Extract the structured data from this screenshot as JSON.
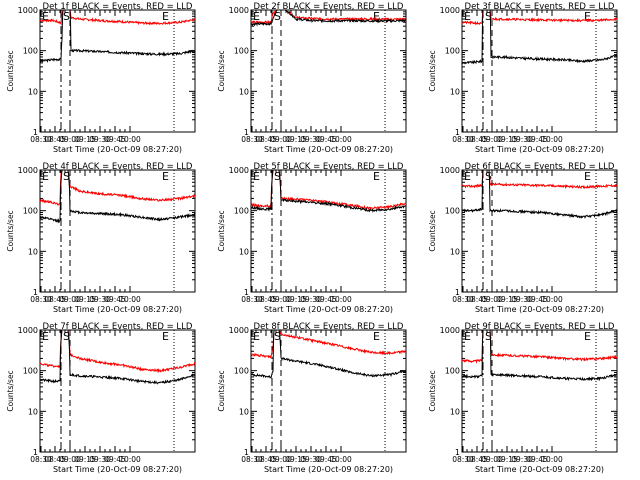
{
  "chart_data": {
    "type": "line",
    "grid": false,
    "legend": "none",
    "ylabel": "Counts/sec",
    "xlabel": "Start Time (20-Oct-09 08:27:20)",
    "ylim": [
      1,
      1000
    ],
    "y_scale": "log",
    "ytick_labels": [
      "1",
      "10",
      "100",
      "1000"
    ],
    "xtick_labels": [
      "08:30",
      "08:45",
      "09:00",
      "09:15",
      "09:30",
      "09:45",
      "10:00"
    ],
    "markers": {
      "E": "E",
      "S": "S"
    },
    "colors": {
      "events": "#000000",
      "lld": "#ff0000",
      "axes": "#000000"
    },
    "panels": [
      {
        "title": "Det 1f BLACK = Events, RED = LLD",
        "events": [
          [
            0,
            55
          ],
          [
            12,
            60
          ],
          [
            21,
            62
          ],
          [
            22,
            200
          ],
          [
            23,
            1000
          ],
          [
            30,
            1000
          ],
          [
            31,
            100
          ],
          [
            40,
            100
          ],
          [
            60,
            95
          ],
          [
            80,
            90
          ],
          [
            100,
            85
          ],
          [
            120,
            82
          ],
          [
            140,
            85
          ],
          [
            155,
            100
          ]
        ],
        "lld": [
          [
            0,
            550
          ],
          [
            12,
            560
          ],
          [
            21,
            480
          ],
          [
            22,
            800
          ],
          [
            23,
            1000
          ],
          [
            30,
            1000
          ],
          [
            31,
            650
          ],
          [
            40,
            600
          ],
          [
            60,
            550
          ],
          [
            80,
            520
          ],
          [
            100,
            480
          ],
          [
            120,
            470
          ],
          [
            140,
            500
          ],
          [
            155,
            580
          ]
        ]
      },
      {
        "title": "Det 2f BLACK = Events, RED = LLD",
        "events": [
          [
            0,
            450
          ],
          [
            20,
            460
          ],
          [
            22,
            600
          ],
          [
            26,
            1000
          ],
          [
            34,
            1000
          ],
          [
            45,
            600
          ],
          [
            60,
            550
          ],
          [
            80,
            540
          ],
          [
            100,
            545
          ],
          [
            120,
            540
          ],
          [
            140,
            540
          ],
          [
            155,
            550
          ]
        ],
        "lld": [
          [
            0,
            500
          ],
          [
            20,
            500
          ],
          [
            22,
            800
          ],
          [
            26,
            1000
          ],
          [
            34,
            1000
          ],
          [
            45,
            650
          ],
          [
            60,
            620
          ],
          [
            80,
            600
          ],
          [
            100,
            600
          ],
          [
            120,
            600
          ],
          [
            140,
            590
          ],
          [
            155,
            600
          ]
        ]
      },
      {
        "title": "Det 3f BLACK = Events, RED = LLD",
        "events": [
          [
            0,
            50
          ],
          [
            12,
            52
          ],
          [
            20,
            55
          ],
          [
            21,
            1000
          ],
          [
            28,
            1000
          ],
          [
            29,
            70
          ],
          [
            40,
            70
          ],
          [
            60,
            65
          ],
          [
            80,
            62
          ],
          [
            100,
            60
          ],
          [
            120,
            55
          ],
          [
            140,
            60
          ],
          [
            155,
            75
          ]
        ],
        "lld": [
          [
            0,
            500
          ],
          [
            12,
            480
          ],
          [
            20,
            460
          ],
          [
            21,
            1000
          ],
          [
            28,
            1000
          ],
          [
            29,
            600
          ],
          [
            40,
            600
          ],
          [
            60,
            580
          ],
          [
            80,
            570
          ],
          [
            100,
            560
          ],
          [
            120,
            550
          ],
          [
            140,
            560
          ],
          [
            155,
            600
          ]
        ]
      },
      {
        "title": "Det 4f BLACK = Events, RED = LLD",
        "events": [
          [
            0,
            70
          ],
          [
            12,
            60
          ],
          [
            20,
            55
          ],
          [
            21,
            500
          ],
          [
            22,
            1000
          ],
          [
            28,
            1000
          ],
          [
            30,
            100
          ],
          [
            40,
            90
          ],
          [
            60,
            85
          ],
          [
            80,
            80
          ],
          [
            100,
            70
          ],
          [
            120,
            60
          ],
          [
            140,
            70
          ],
          [
            155,
            80
          ]
        ],
        "lld": [
          [
            0,
            180
          ],
          [
            12,
            160
          ],
          [
            20,
            140
          ],
          [
            21,
            800
          ],
          [
            22,
            1000
          ],
          [
            28,
            1000
          ],
          [
            30,
            400
          ],
          [
            40,
            300
          ],
          [
            60,
            260
          ],
          [
            80,
            240
          ],
          [
            100,
            200
          ],
          [
            120,
            180
          ],
          [
            140,
            200
          ],
          [
            155,
            230
          ]
        ]
      },
      {
        "title": "Det 5f BLACK = Events, RED = LLD",
        "events": [
          [
            0,
            120
          ],
          [
            12,
            110
          ],
          [
            20,
            110
          ],
          [
            22,
            1000
          ],
          [
            28,
            1000
          ],
          [
            30,
            180
          ],
          [
            40,
            175
          ],
          [
            60,
            160
          ],
          [
            80,
            145
          ],
          [
            100,
            120
          ],
          [
            120,
            100
          ],
          [
            140,
            110
          ],
          [
            155,
            130
          ]
        ],
        "lld": [
          [
            0,
            140
          ],
          [
            12,
            130
          ],
          [
            20,
            130
          ],
          [
            22,
            1000
          ],
          [
            28,
            1000
          ],
          [
            30,
            200
          ],
          [
            40,
            195
          ],
          [
            60,
            180
          ],
          [
            80,
            160
          ],
          [
            100,
            135
          ],
          [
            120,
            115
          ],
          [
            140,
            125
          ],
          [
            155,
            150
          ]
        ]
      },
      {
        "title": "Det 6f BLACK = Events, RED = LLD",
        "events": [
          [
            0,
            100
          ],
          [
            12,
            100
          ],
          [
            20,
            110
          ],
          [
            21,
            1000
          ],
          [
            27,
            1000
          ],
          [
            28,
            100
          ],
          [
            40,
            100
          ],
          [
            60,
            95
          ],
          [
            80,
            90
          ],
          [
            100,
            80
          ],
          [
            120,
            70
          ],
          [
            140,
            80
          ],
          [
            155,
            100
          ]
        ],
        "lld": [
          [
            0,
            400
          ],
          [
            12,
            400
          ],
          [
            20,
            420
          ],
          [
            21,
            1000
          ],
          [
            27,
            1000
          ],
          [
            28,
            450
          ],
          [
            40,
            440
          ],
          [
            60,
            430
          ],
          [
            80,
            420
          ],
          [
            100,
            400
          ],
          [
            120,
            380
          ],
          [
            140,
            400
          ],
          [
            155,
            420
          ]
        ]
      },
      {
        "title": "Det 7f BLACK = Events, RED = LLD",
        "events": [
          [
            0,
            60
          ],
          [
            12,
            55
          ],
          [
            20,
            55
          ],
          [
            22,
            1000
          ],
          [
            28,
            1000
          ],
          [
            30,
            80
          ],
          [
            40,
            75
          ],
          [
            60,
            70
          ],
          [
            80,
            65
          ],
          [
            100,
            55
          ],
          [
            120,
            50
          ],
          [
            140,
            60
          ],
          [
            155,
            80
          ]
        ],
        "lld": [
          [
            0,
            150
          ],
          [
            12,
            130
          ],
          [
            20,
            130
          ],
          [
            22,
            1000
          ],
          [
            28,
            1000
          ],
          [
            30,
            250
          ],
          [
            40,
            200
          ],
          [
            60,
            160
          ],
          [
            80,
            140
          ],
          [
            100,
            110
          ],
          [
            120,
            100
          ],
          [
            140,
            120
          ],
          [
            155,
            150
          ]
        ]
      },
      {
        "title": "Det 8f BLACK = Events, RED = LLD",
        "events": [
          [
            0,
            80
          ],
          [
            12,
            75
          ],
          [
            20,
            70
          ],
          [
            22,
            100
          ],
          [
            23,
            1000
          ],
          [
            28,
            1000
          ],
          [
            30,
            200
          ],
          [
            40,
            180
          ],
          [
            60,
            150
          ],
          [
            80,
            120
          ],
          [
            100,
            90
          ],
          [
            120,
            75
          ],
          [
            140,
            80
          ],
          [
            155,
            100
          ]
        ],
        "lld": [
          [
            0,
            250
          ],
          [
            12,
            230
          ],
          [
            20,
            220
          ],
          [
            22,
            350
          ],
          [
            23,
            1000
          ],
          [
            28,
            1000
          ],
          [
            30,
            800
          ],
          [
            40,
            700
          ],
          [
            60,
            560
          ],
          [
            80,
            450
          ],
          [
            100,
            350
          ],
          [
            120,
            280
          ],
          [
            140,
            270
          ],
          [
            155,
            300
          ]
        ]
      },
      {
        "title": "Det 9f BLACK = Events, RED = LLD",
        "events": [
          [
            0,
            75
          ],
          [
            12,
            70
          ],
          [
            20,
            75
          ],
          [
            21,
            1000
          ],
          [
            28,
            1000
          ],
          [
            29,
            80
          ],
          [
            40,
            78
          ],
          [
            60,
            75
          ],
          [
            80,
            70
          ],
          [
            100,
            65
          ],
          [
            120,
            62
          ],
          [
            140,
            65
          ],
          [
            155,
            80
          ]
        ],
        "lld": [
          [
            0,
            180
          ],
          [
            12,
            170
          ],
          [
            20,
            180
          ],
          [
            21,
            1000
          ],
          [
            28,
            1000
          ],
          [
            29,
            250
          ],
          [
            40,
            240
          ],
          [
            60,
            230
          ],
          [
            80,
            220
          ],
          [
            100,
            200
          ],
          [
            120,
            190
          ],
          [
            140,
            200
          ],
          [
            155,
            220
          ]
        ]
      }
    ]
  }
}
